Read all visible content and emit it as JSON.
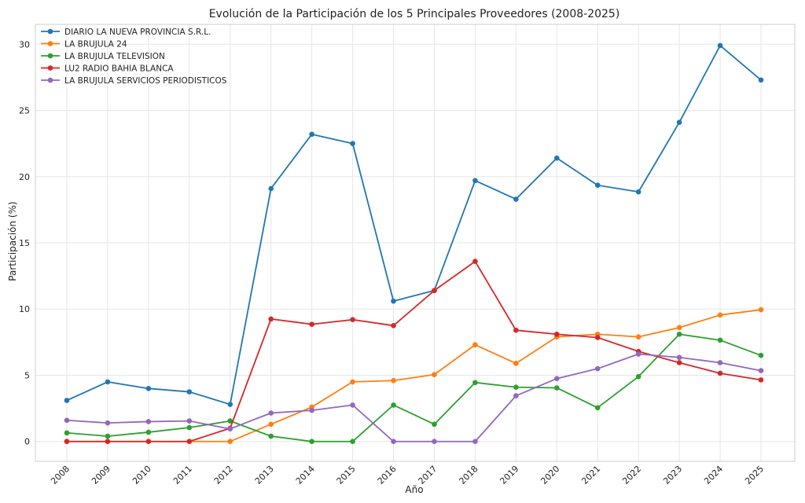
{
  "chart_data": {
    "type": "line",
    "title": "Evolución de la Participación de los 5 Principales Proveedores (2008-2025)",
    "xlabel": "Año",
    "ylabel": "Participación (%)",
    "ylim": [
      -1.5,
      31.5
    ],
    "yticks": [
      0,
      5,
      10,
      15,
      20,
      25,
      30
    ],
    "x": [
      "2008",
      "2009",
      "2010",
      "2011",
      "2012",
      "2013",
      "2014",
      "2015",
      "2016",
      "2017",
      "2018",
      "2019",
      "2020",
      "2021",
      "2022",
      "2023",
      "2024",
      "2025"
    ],
    "grid": true,
    "legend_position": "top-left",
    "series": [
      {
        "name": "DIARIO LA NUEVA PROVINCIA S.R.L.",
        "color": "#1f77b4",
        "values": [
          3.1,
          4.5,
          4.0,
          3.75,
          2.8,
          19.1,
          23.2,
          22.5,
          10.6,
          11.4,
          19.7,
          18.3,
          21.4,
          19.35,
          18.85,
          24.1,
          29.9,
          27.3
        ]
      },
      {
        "name": "LA BRUJULA 24",
        "color": "#ff7f0e",
        "values": [
          0,
          0,
          0,
          0,
          0,
          1.3,
          2.6,
          4.5,
          4.6,
          5.05,
          7.3,
          5.9,
          7.9,
          8.1,
          7.9,
          8.6,
          9.55,
          9.95
        ]
      },
      {
        "name": "LA BRUJULA TELEVISION",
        "color": "#2ca02c",
        "values": [
          0.65,
          0.4,
          0.7,
          1.05,
          1.55,
          0.4,
          0.0,
          0.0,
          2.75,
          1.3,
          4.45,
          4.1,
          4.05,
          2.55,
          4.9,
          8.1,
          7.65,
          6.5
        ]
      },
      {
        "name": "LU2 RADIO BAHIA BLANCA",
        "color": "#d62728",
        "values": [
          0,
          0,
          0,
          0,
          1.0,
          9.25,
          8.85,
          9.2,
          8.75,
          11.4,
          13.6,
          8.4,
          8.1,
          7.85,
          6.8,
          5.95,
          5.15,
          4.65
        ]
      },
      {
        "name": "LA BRUJULA SERVICIOS PERIODISTICOS",
        "color": "#9467bd",
        "values": [
          1.6,
          1.4,
          1.5,
          1.55,
          0.95,
          2.15,
          2.35,
          2.75,
          0.0,
          0.0,
          0.0,
          3.45,
          4.75,
          5.5,
          6.6,
          6.35,
          5.95,
          5.35
        ]
      }
    ]
  }
}
